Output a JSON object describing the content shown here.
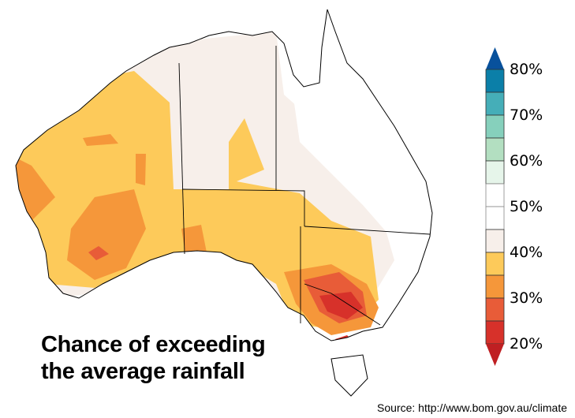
{
  "title_line1": "Chance of exceeding",
  "title_line2": "the average rainfall",
  "source": "Source: http://www.bom.gov.au/climate",
  "legend": {
    "labels": [
      "80%",
      "70%",
      "60%",
      "50%",
      "40%",
      "30%",
      "20%"
    ],
    "colors": [
      "#0b7fa8",
      "#45aeb8",
      "#86d0bc",
      "#b3dfc1",
      "#e6f5ea",
      "#ffffff",
      "#ffffff",
      "#f7efea",
      "#fdca5a",
      "#f5973a",
      "#e85c38",
      "#d7312a"
    ],
    "over_color": "#08519c",
    "under_color": "#bf1f22"
  }
}
